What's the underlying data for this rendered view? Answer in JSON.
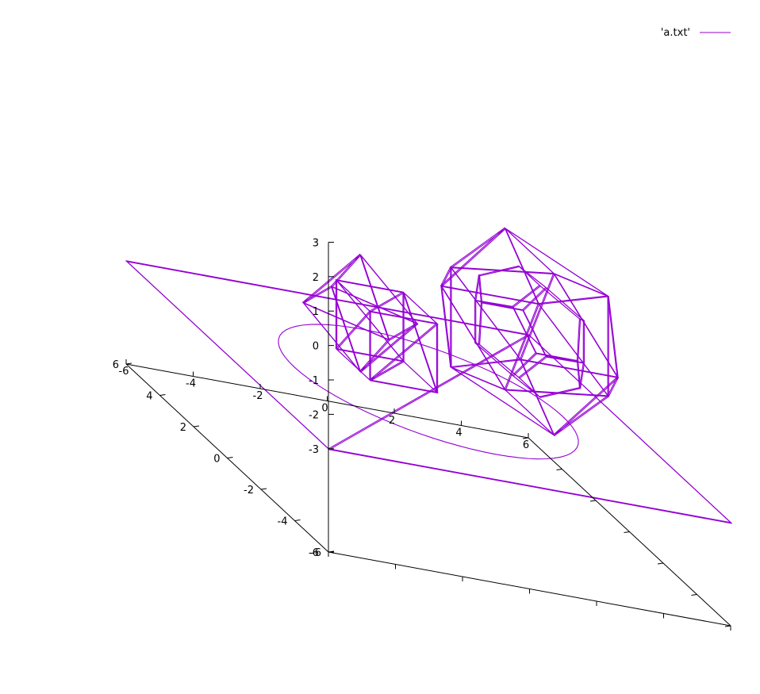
{
  "chart_data": {
    "type": "line",
    "title": "",
    "xlabel": "",
    "ylabel": "",
    "zlabel": "",
    "xlim": [
      -6,
      6
    ],
    "ylim": [
      -6,
      6
    ],
    "zlim": [
      -6,
      3
    ],
    "x_ticks": [
      -6,
      -4,
      -2,
      0,
      2,
      4,
      6
    ],
    "y_ticks": [
      -6,
      -4,
      -2,
      0,
      2,
      4,
      6
    ],
    "z_ticks": [
      3,
      2,
      1,
      0,
      -1,
      -2,
      -3,
      -6
    ],
    "grid": false,
    "legend_position": "top-right",
    "series": [
      {
        "name": "'a.txt'",
        "color": "#9400d3",
        "objects": [
          {
            "shape": "plane-square",
            "points": [
              [
                -6,
                -6,
                -3
              ],
              [
                6,
                -6,
                -3
              ],
              [
                6,
                6,
                -3
              ],
              [
                -6,
                6,
                -3
              ]
            ],
            "edges": [
              [
                0,
                1
              ],
              [
                1,
                2
              ],
              [
                2,
                3
              ],
              [
                3,
                0
              ],
              [
                0,
                2
              ]
            ]
          },
          {
            "shape": "circle",
            "center": [
              0,
              0,
              -3
            ],
            "radius": 4,
            "segments": 72
          },
          {
            "shape": "octahedron",
            "center": [
              -2.7,
              -1.3,
              -0.6
            ],
            "size": 1.7,
            "points": [
              [
                1,
                0,
                0
              ],
              [
                -1,
                0,
                0
              ],
              [
                0,
                1,
                0
              ],
              [
                0,
                -1,
                0
              ],
              [
                0,
                0,
                1
              ],
              [
                0,
                0,
                -1
              ]
            ],
            "edges": [
              [
                0,
                2
              ],
              [
                2,
                1
              ],
              [
                1,
                3
              ],
              [
                3,
                0
              ],
              [
                4,
                0
              ],
              [
                4,
                1
              ],
              [
                4,
                2
              ],
              [
                4,
                3
              ],
              [
                5,
                0
              ],
              [
                5,
                1
              ],
              [
                5,
                2
              ],
              [
                5,
                3
              ]
            ]
          },
          {
            "shape": "cube",
            "center": [
              -0.3,
              1.9,
              -2.3
            ],
            "size": 1.0,
            "points": [
              [
                -1,
                -1,
                -1
              ],
              [
                1,
                -1,
                -1
              ],
              [
                1,
                1,
                -1
              ],
              [
                -1,
                1,
                -1
              ],
              [
                -1,
                -1,
                1
              ],
              [
                1,
                -1,
                1
              ],
              [
                1,
                1,
                1
              ],
              [
                -1,
                1,
                1
              ]
            ],
            "edges": [
              [
                0,
                1
              ],
              [
                1,
                2
              ],
              [
                2,
                3
              ],
              [
                3,
                0
              ],
              [
                4,
                5
              ],
              [
                5,
                6
              ],
              [
                6,
                7
              ],
              [
                7,
                4
              ],
              [
                0,
                4
              ],
              [
                1,
                5
              ],
              [
                2,
                6
              ],
              [
                3,
                7
              ],
              [
                0,
                5
              ],
              [
                1,
                6
              ],
              [
                2,
                7
              ],
              [
                3,
                4
              ],
              [
                0,
                2
              ],
              [
                4,
                6
              ]
            ]
          },
          {
            "shape": "icosahedron",
            "center": [
              2.3,
              -1.4,
              -0.2
            ],
            "size": 1.45,
            "points": [
              [
                0,
                1,
                1.618
              ],
              [
                0,
                -1,
                1.618
              ],
              [
                0,
                1,
                -1.618
              ],
              [
                0,
                -1,
                -1.618
              ],
              [
                1,
                1.618,
                0
              ],
              [
                -1,
                1.618,
                0
              ],
              [
                1,
                -1.618,
                0
              ],
              [
                -1,
                -1.618,
                0
              ],
              [
                1.618,
                0,
                1
              ],
              [
                -1.618,
                0,
                1
              ],
              [
                1.618,
                0,
                -1
              ],
              [
                -1.618,
                0,
                -1
              ]
            ],
            "edges": [
              [
                0,
                1
              ],
              [
                0,
                4
              ],
              [
                0,
                5
              ],
              [
                0,
                8
              ],
              [
                0,
                9
              ],
              [
                1,
                6
              ],
              [
                1,
                7
              ],
              [
                1,
                8
              ],
              [
                1,
                9
              ],
              [
                2,
                3
              ],
              [
                2,
                4
              ],
              [
                2,
                5
              ],
              [
                2,
                10
              ],
              [
                2,
                11
              ],
              [
                3,
                6
              ],
              [
                3,
                7
              ],
              [
                3,
                10
              ],
              [
                3,
                11
              ],
              [
                4,
                5
              ],
              [
                4,
                8
              ],
              [
                4,
                10
              ],
              [
                5,
                9
              ],
              [
                5,
                11
              ],
              [
                6,
                7
              ],
              [
                6,
                8
              ],
              [
                6,
                10
              ],
              [
                7,
                9
              ],
              [
                7,
                11
              ],
              [
                8,
                10
              ],
              [
                9,
                11
              ]
            ]
          },
          {
            "shape": "dodecahedron",
            "center": [
              2.3,
              -1.4,
              -0.2
            ],
            "size": 1.0,
            "points": [
              [
                1,
                1,
                1
              ],
              [
                1,
                1,
                -1
              ],
              [
                1,
                -1,
                1
              ],
              [
                1,
                -1,
                -1
              ],
              [
                -1,
                1,
                1
              ],
              [
                -1,
                1,
                -1
              ],
              [
                -1,
                -1,
                1
              ],
              [
                -1,
                -1,
                -1
              ],
              [
                0,
                0.618,
                1.618
              ],
              [
                0,
                -0.618,
                1.618
              ],
              [
                0,
                0.618,
                -1.618
              ],
              [
                0,
                -0.618,
                -1.618
              ],
              [
                0.618,
                1.618,
                0
              ],
              [
                -0.618,
                1.618,
                0
              ],
              [
                0.618,
                -1.618,
                0
              ],
              [
                -0.618,
                -1.618,
                0
              ],
              [
                1.618,
                0,
                0.618
              ],
              [
                1.618,
                0,
                -0.618
              ],
              [
                -1.618,
                0,
                0.618
              ],
              [
                -1.618,
                0,
                -0.618
              ]
            ],
            "edges": [
              [
                0,
                8
              ],
              [
                0,
                12
              ],
              [
                0,
                16
              ],
              [
                1,
                10
              ],
              [
                1,
                12
              ],
              [
                1,
                17
              ],
              [
                2,
                9
              ],
              [
                2,
                14
              ],
              [
                2,
                16
              ],
              [
                3,
                11
              ],
              [
                3,
                14
              ],
              [
                3,
                17
              ],
              [
                4,
                8
              ],
              [
                4,
                13
              ],
              [
                4,
                18
              ],
              [
                5,
                10
              ],
              [
                5,
                13
              ],
              [
                5,
                19
              ],
              [
                6,
                9
              ],
              [
                6,
                15
              ],
              [
                6,
                18
              ],
              [
                7,
                11
              ],
              [
                7,
                15
              ],
              [
                7,
                19
              ],
              [
                8,
                9
              ],
              [
                10,
                11
              ],
              [
                12,
                13
              ],
              [
                14,
                15
              ],
              [
                16,
                17
              ],
              [
                18,
                19
              ]
            ]
          }
        ]
      }
    ]
  }
}
